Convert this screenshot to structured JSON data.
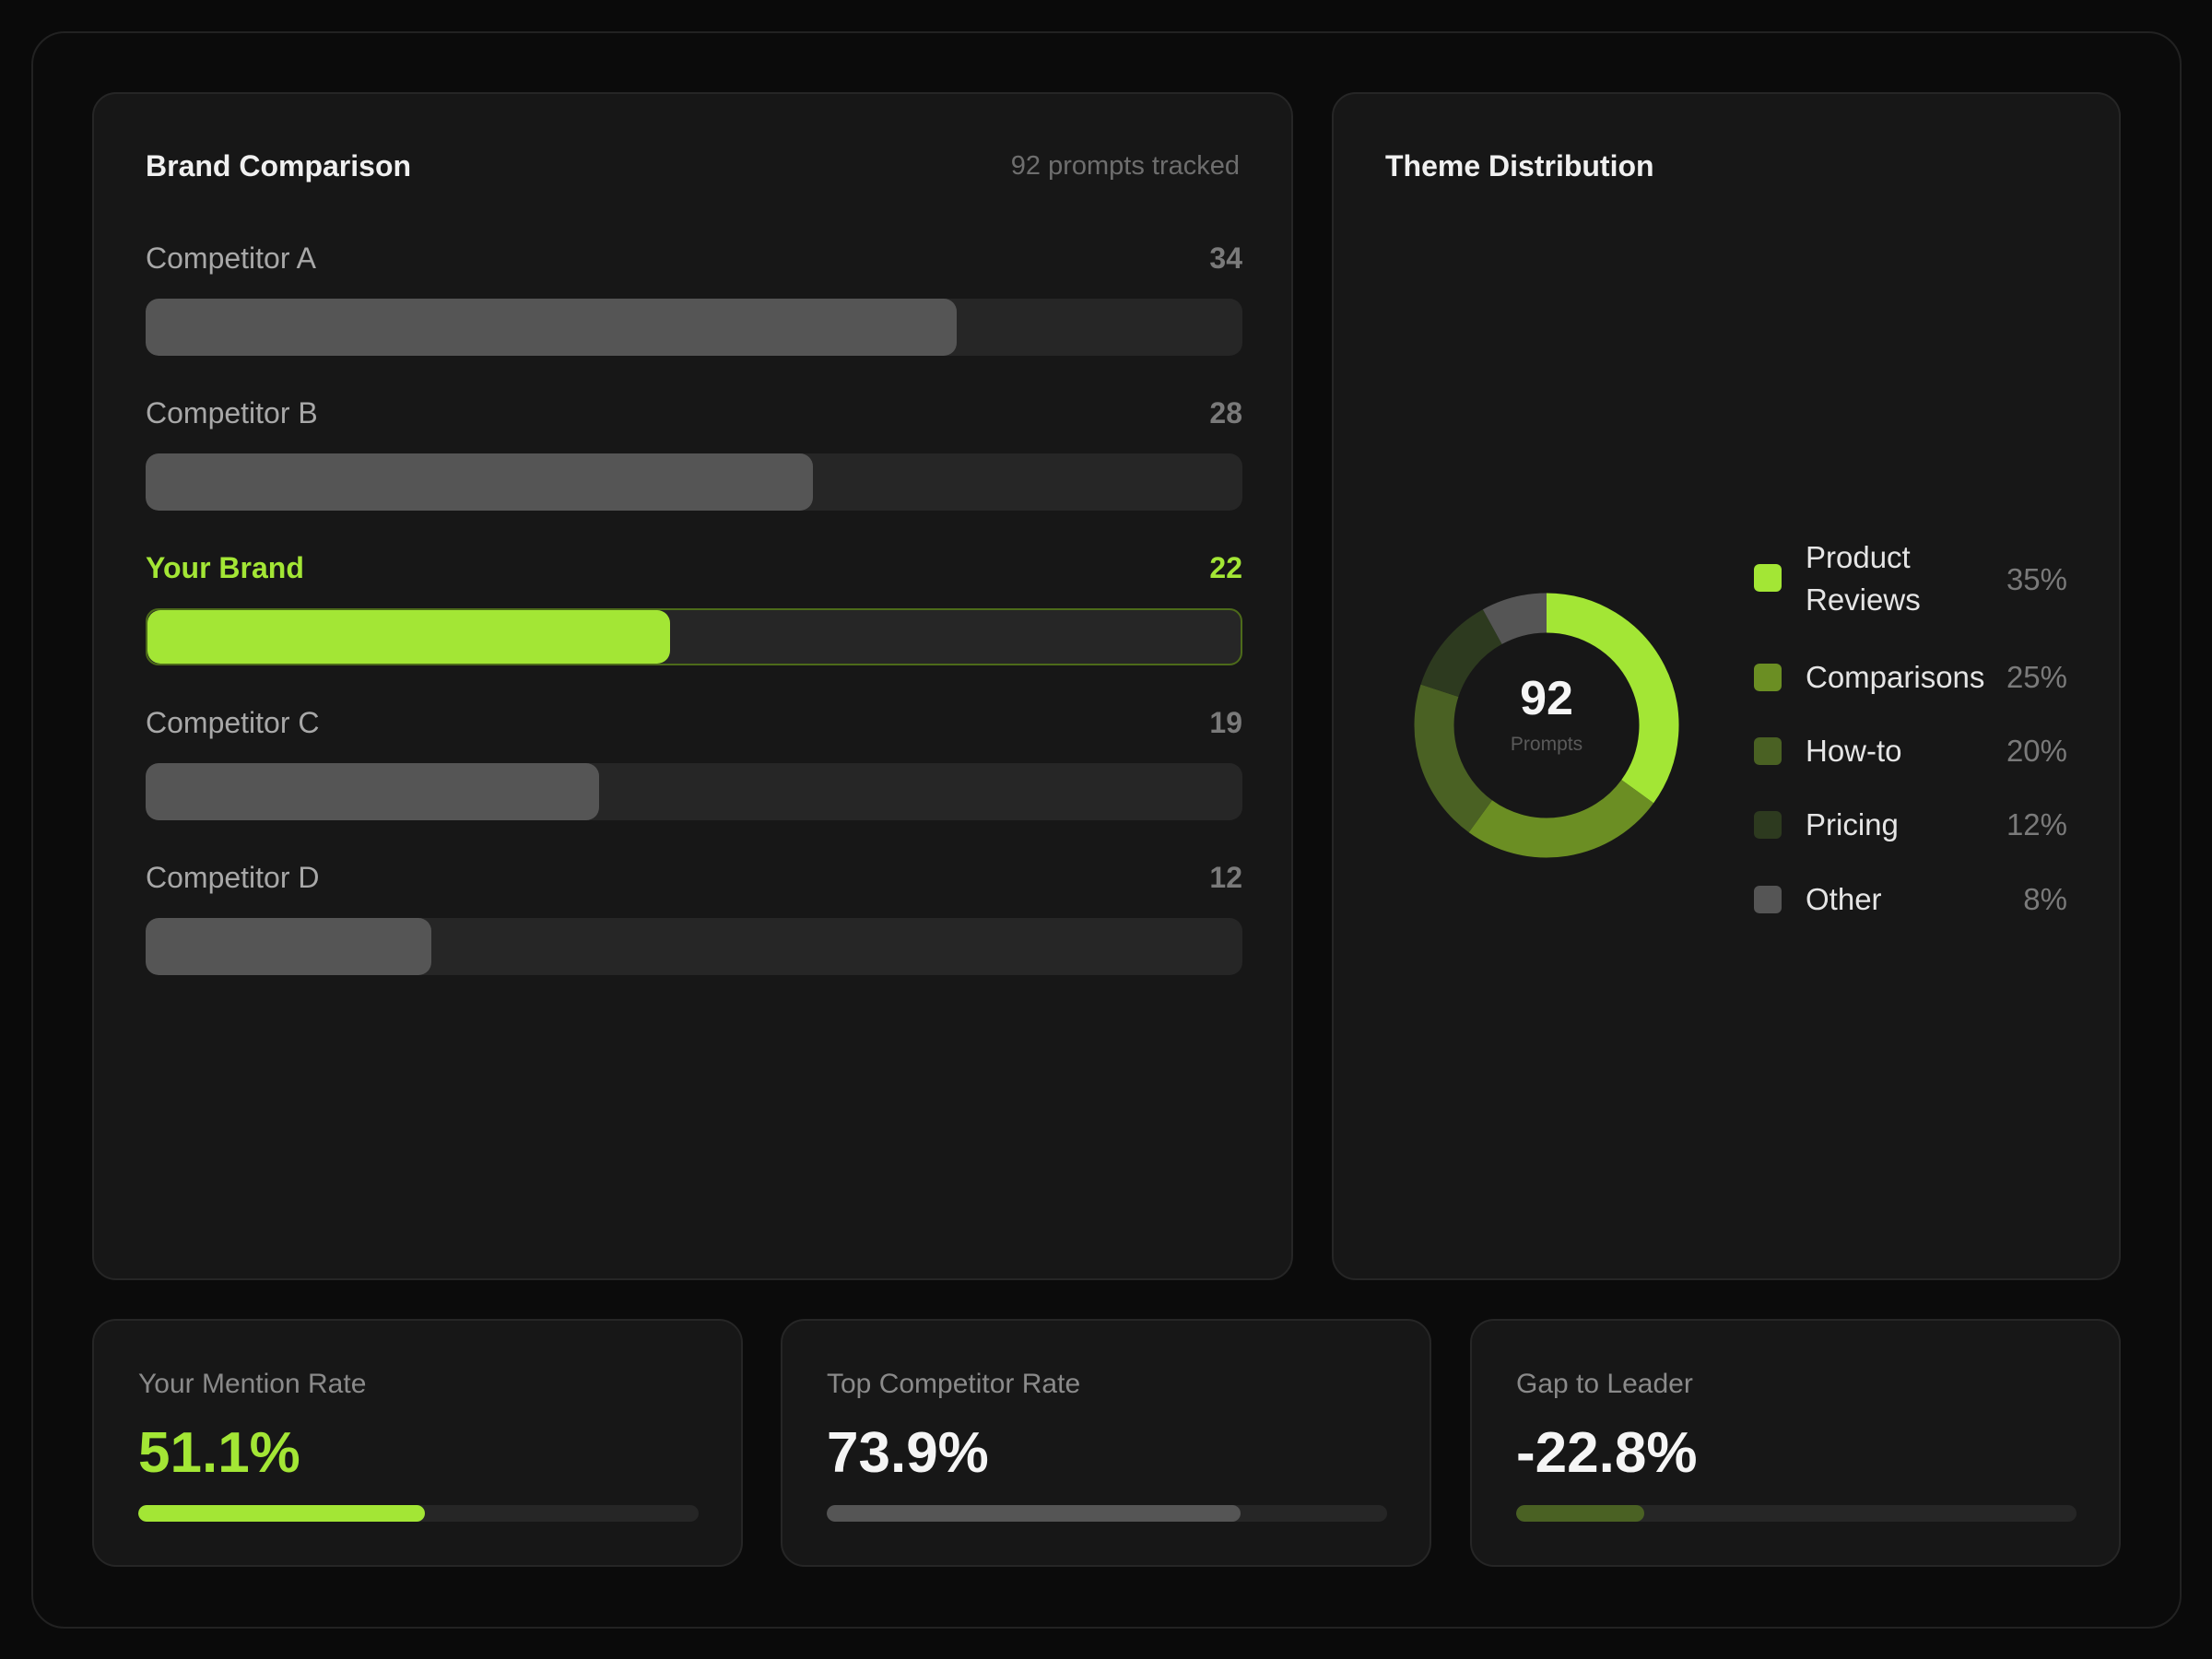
{
  "brand_comparison": {
    "title": "Brand Comparison",
    "subtitle": "92 prompts tracked",
    "scale_max": 46,
    "rows": [
      {
        "label": "Competitor A",
        "value": 34,
        "highlight": false
      },
      {
        "label": "Competitor B",
        "value": 28,
        "highlight": false
      },
      {
        "label": "Your Brand",
        "value": 22,
        "highlight": true
      },
      {
        "label": "Competitor C",
        "value": 19,
        "highlight": false
      },
      {
        "label": "Competitor D",
        "value": 12,
        "highlight": false
      }
    ]
  },
  "theme_distribution": {
    "title": "Theme Distribution",
    "center_value": "92",
    "center_label": "Prompts",
    "slices": [
      {
        "label": "Product Reviews",
        "pct": "35%",
        "value": 35,
        "color": "#a3e635"
      },
      {
        "label": "Comparisons",
        "pct": "25%",
        "value": 25,
        "color": "#6b8e23"
      },
      {
        "label": "How-to",
        "pct": "20%",
        "value": 20,
        "color": "#4a6123"
      },
      {
        "label": "Pricing",
        "pct": "12%",
        "value": 12,
        "color": "#2d3a1f"
      },
      {
        "label": "Other",
        "pct": "8%",
        "value": 8,
        "color": "#555555"
      }
    ]
  },
  "stats": [
    {
      "label": "Your Mention Rate",
      "value": "51.1%",
      "fill": 51.1,
      "value_color": "#a3e635",
      "bar_color": "#a3e635"
    },
    {
      "label": "Top Competitor Rate",
      "value": "73.9%",
      "fill": 73.9,
      "value_color": "#f5f5f5",
      "bar_color": "#555555"
    },
    {
      "label": "Gap to Leader",
      "value": "-22.8%",
      "fill": 22.8,
      "value_color": "#f5f5f5",
      "bar_color": "#4a6123"
    }
  ]
}
